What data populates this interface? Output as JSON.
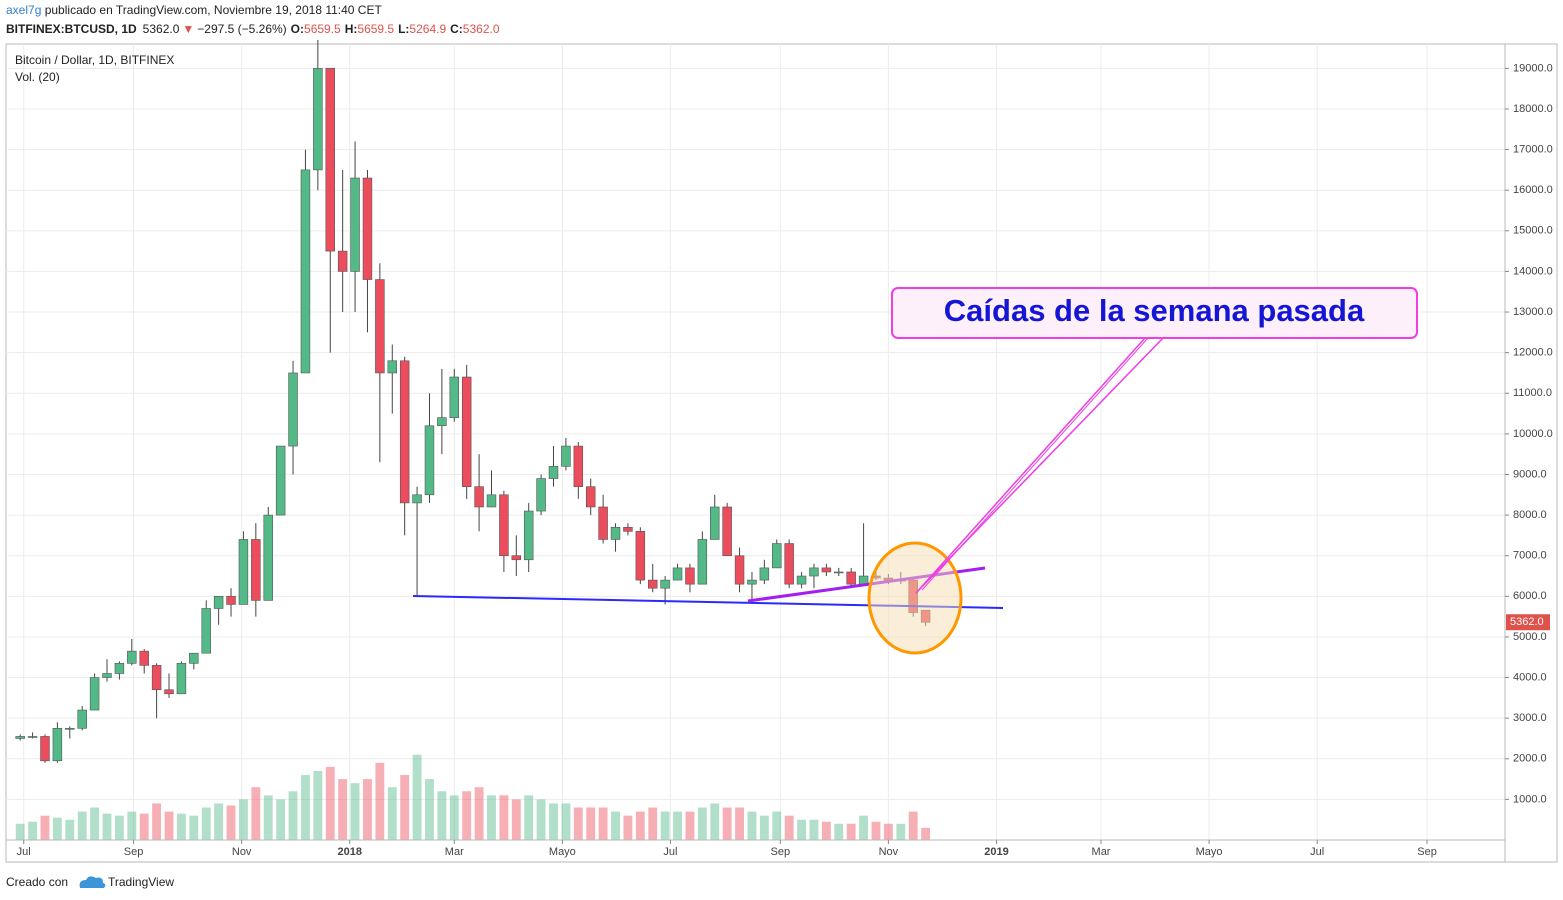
{
  "header": {
    "author": "axel7g",
    "published": " publicado en TradingView.com, Noviembre 19, 2018 11:40 CET",
    "symbol": "BITFINEX:BTCUSD, 1D",
    "last": "5362.0",
    "arrow": "▼",
    "change": "−297.5 (−5.26%)",
    "o_label": "O:",
    "o": "5659.5",
    "h_label": "H:",
    "h": "5659.5",
    "l_label": "L:",
    "l": "5264.9",
    "c_label": "C:",
    "c": "5362.0"
  },
  "chart_data": {
    "type": "candlestick",
    "title": "Bitcoin / Dollar, 1D, BITFINEX",
    "volume_label": "Vol. (20)",
    "x": [
      "2017-06-26",
      "2017-07-03",
      "2017-07-10",
      "2017-07-17",
      "2017-07-24",
      "2017-07-31",
      "2017-08-07",
      "2017-08-14",
      "2017-08-21",
      "2017-08-28",
      "2017-09-04",
      "2017-09-11",
      "2017-09-18",
      "2017-09-25",
      "2017-10-02",
      "2017-10-09",
      "2017-10-16",
      "2017-10-23",
      "2017-10-30",
      "2017-11-06",
      "2017-11-13",
      "2017-11-20",
      "2017-11-27",
      "2017-12-04",
      "2017-12-11",
      "2017-12-18",
      "2017-12-25",
      "2018-01-01",
      "2018-01-08",
      "2018-01-15",
      "2018-01-22",
      "2018-01-29",
      "2018-02-05",
      "2018-02-12",
      "2018-02-19",
      "2018-02-26",
      "2018-03-05",
      "2018-03-12",
      "2018-03-19",
      "2018-03-26",
      "2018-04-02",
      "2018-04-09",
      "2018-04-16",
      "2018-04-23",
      "2018-04-30",
      "2018-05-07",
      "2018-05-14",
      "2018-05-21",
      "2018-05-28",
      "2018-06-04",
      "2018-06-11",
      "2018-06-18",
      "2018-06-25",
      "2018-07-02",
      "2018-07-09",
      "2018-07-16",
      "2018-07-23",
      "2018-07-30",
      "2018-08-06",
      "2018-08-13",
      "2018-08-20",
      "2018-08-27",
      "2018-09-03",
      "2018-09-10",
      "2018-09-17",
      "2018-09-24",
      "2018-10-01",
      "2018-10-08",
      "2018-10-15",
      "2018-10-22",
      "2018-10-29",
      "2018-11-05",
      "2018-11-12",
      "2018-11-19"
    ],
    "open": [
      2500,
      2550,
      2550,
      1950,
      2750,
      2750,
      3200,
      4000,
      4100,
      4350,
      4650,
      4300,
      3700,
      3600,
      4350,
      4600,
      5700,
      6000,
      5800,
      7400,
      5900,
      8000,
      9700,
      11500,
      16500,
      19000,
      14500,
      14000,
      16300,
      13800,
      11500,
      11800,
      8300,
      8500,
      10200,
      10400,
      11400,
      8700,
      8200,
      8500,
      7000,
      6900,
      8100,
      8900,
      9200,
      9700,
      8700,
      8200,
      7400,
      7700,
      7600,
      6400,
      6200,
      6400,
      6700,
      6300,
      7400,
      8200,
      7000,
      6300,
      6400,
      6700,
      7300,
      6300,
      6500,
      6700,
      6600,
      6600,
      6300,
      6500,
      6450,
      6400,
      6400,
      5659.5
    ],
    "high": [
      2600,
      2650,
      2600,
      2900,
      2800,
      3300,
      4100,
      4450,
      4400,
      4950,
      4700,
      4350,
      4100,
      4400,
      4600,
      5900,
      6000,
      6200,
      7600,
      7800,
      8200,
      9700,
      11800,
      17000,
      19700,
      19000,
      16500,
      17200,
      16500,
      14200,
      12200,
      11900,
      8700,
      11000,
      11600,
      11600,
      11700,
      9500,
      9100,
      8600,
      7500,
      8300,
      9000,
      9700,
      9900,
      9800,
      8900,
      8500,
      7800,
      7800,
      7700,
      6800,
      6500,
      6800,
      6800,
      7600,
      8500,
      8300,
      7200,
      6600,
      6900,
      7400,
      7400,
      6600,
      6800,
      6800,
      6700,
      6700,
      7800,
      6600,
      6550,
      6600,
      6450,
      5659.5
    ],
    "low": [
      2450,
      2500,
      1900,
      1900,
      2500,
      2700,
      3200,
      3900,
      3950,
      4300,
      4100,
      3000,
      3500,
      3600,
      4200,
      4600,
      5300,
      5500,
      5800,
      5500,
      5900,
      8000,
      9000,
      11500,
      16000,
      12000,
      13000,
      13000,
      12500,
      9300,
      10500,
      7500,
      6000,
      8300,
      9500,
      10300,
      8400,
      7600,
      8200,
      6600,
      6500,
      6600,
      8000,
      8700,
      9100,
      8400,
      8000,
      7300,
      7100,
      7500,
      6300,
      6100,
      5800,
      6400,
      6100,
      6300,
      7400,
      7000,
      6100,
      5900,
      6300,
      6700,
      6200,
      6200,
      6200,
      6500,
      6500,
      6200,
      6300,
      6400,
      6300,
      6300,
      5500,
      5264.9
    ],
    "close": [
      2550,
      2550,
      1950,
      2750,
      2750,
      3200,
      4000,
      4100,
      4350,
      4650,
      4300,
      3700,
      3600,
      4350,
      4600,
      5700,
      6000,
      5800,
      7400,
      5900,
      8000,
      9700,
      11500,
      16500,
      19000,
      14500,
      14000,
      16300,
      13800,
      11500,
      11800,
      8300,
      8500,
      10200,
      10400,
      11400,
      8700,
      8200,
      8500,
      7000,
      6900,
      8100,
      8900,
      9200,
      9700,
      8700,
      8200,
      7400,
      7700,
      7600,
      6400,
      6200,
      6400,
      6700,
      6300,
      7400,
      8200,
      7000,
      6300,
      6400,
      6700,
      7300,
      6300,
      6500,
      6700,
      6600,
      6600,
      6300,
      6500,
      6450,
      6400,
      6400,
      5600,
      5362.0
    ],
    "volume": [
      400,
      450,
      600,
      550,
      500,
      700,
      800,
      650,
      600,
      700,
      650,
      900,
      700,
      650,
      600,
      800,
      900,
      850,
      1000,
      1300,
      1100,
      1000,
      1200,
      1600,
      1700,
      1800,
      1500,
      1400,
      1500,
      1900,
      1300,
      1600,
      2100,
      1500,
      1200,
      1100,
      1200,
      1300,
      1100,
      1100,
      1000,
      1100,
      1000,
      900,
      900,
      800,
      800,
      800,
      700,
      600,
      700,
      800,
      700,
      700,
      700,
      800,
      900,
      800,
      800,
      700,
      600,
      700,
      600,
      500,
      500,
      450,
      400,
      400,
      600,
      450,
      400,
      400,
      700,
      300
    ],
    "up_color": "#53b987",
    "down_color": "#eb4d5c",
    "xlim": [
      "2017-06-21",
      "2019-10-15"
    ],
    "xticks": [
      {
        "value": "2017-07-01",
        "label": "Jul"
      },
      {
        "value": "2017-09-01",
        "label": "Sep"
      },
      {
        "value": "2017-11-01",
        "label": "Nov"
      },
      {
        "value": "2018-01-01",
        "label": "2018"
      },
      {
        "value": "2018-03-01",
        "label": "Mar"
      },
      {
        "value": "2018-05-01",
        "label": "Mayo"
      },
      {
        "value": "2018-07-01",
        "label": "Jul"
      },
      {
        "value": "2018-09-01",
        "label": "Sep"
      },
      {
        "value": "2018-11-01",
        "label": "Nov"
      },
      {
        "value": "2019-01-01",
        "label": "2019"
      },
      {
        "value": "2019-03-01",
        "label": "Mar"
      },
      {
        "value": "2019-05-01",
        "label": "Mayo"
      },
      {
        "value": "2019-07-01",
        "label": "Jul"
      },
      {
        "value": "2019-09-01",
        "label": "Sep"
      }
    ],
    "ylim": [
      0,
      19600
    ],
    "yticks": [
      {
        "value": 1000,
        "label": "1000.0"
      },
      {
        "value": 2000,
        "label": "2000.0"
      },
      {
        "value": 3000,
        "label": "3000.0"
      },
      {
        "value": 4000,
        "label": "4000.0"
      },
      {
        "value": 5000,
        "label": "5000.0"
      },
      {
        "value": 6000,
        "label": "6000.0"
      },
      {
        "value": 7000,
        "label": "7000.0"
      },
      {
        "value": 8000,
        "label": "8000.0"
      },
      {
        "value": 9000,
        "label": "9000.0"
      },
      {
        "value": 10000,
        "label": "10000.0"
      },
      {
        "value": 11000,
        "label": "11000.0"
      },
      {
        "value": 12000,
        "label": "12000.0"
      },
      {
        "value": 13000,
        "label": "13000.0"
      },
      {
        "value": 14000,
        "label": "14000.0"
      },
      {
        "value": 15000,
        "label": "15000.0"
      },
      {
        "value": 16000,
        "label": "16000.0"
      },
      {
        "value": 17000,
        "label": "17000.0"
      },
      {
        "value": 18000,
        "label": "18000.0"
      },
      {
        "value": 19000,
        "label": "19000.0"
      }
    ],
    "grid": true,
    "last_price": 5362.0,
    "last_price_label": "5362.0",
    "annotation": "Caídas de la semana pasada"
  },
  "footer": {
    "created": "Creado con",
    "brand": "TradingView"
  }
}
